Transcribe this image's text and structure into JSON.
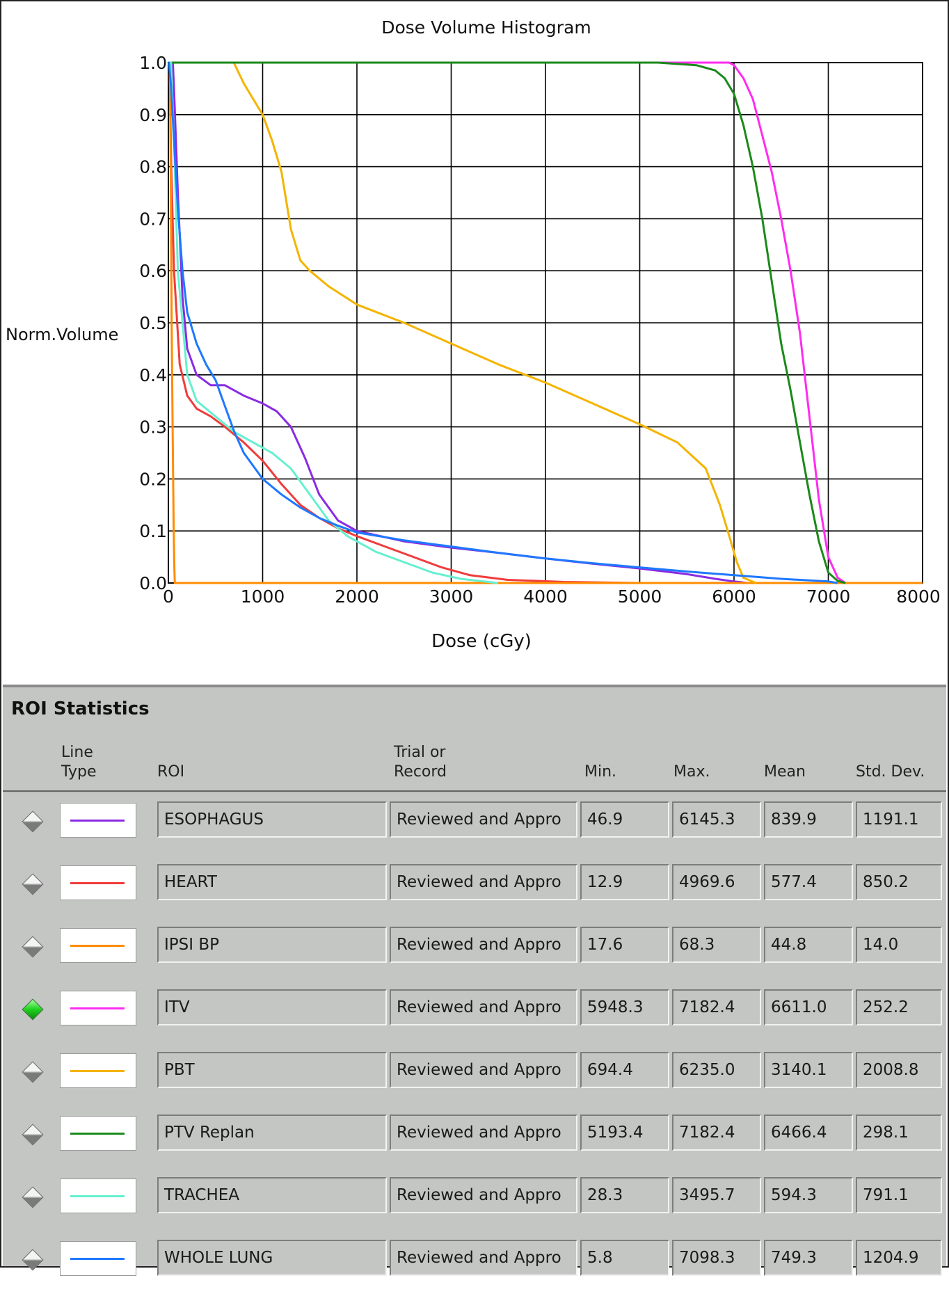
{
  "chart_data": {
    "type": "line",
    "title": "Dose Volume Histogram",
    "xlabel": "Dose (cGy)",
    "ylabel": "Norm.Volume",
    "xlim": [
      0,
      8000
    ],
    "ylim": [
      0,
      1.0
    ],
    "x_ticks": [
      "0",
      "1000",
      "2000",
      "3000",
      "4000",
      "5000",
      "6000",
      "7000",
      "8000"
    ],
    "y_ticks": [
      "0.0",
      "0.1",
      "0.2",
      "0.3",
      "0.4",
      "0.5",
      "0.6",
      "0.7",
      "0.8",
      "0.9",
      "1.0"
    ],
    "grid": true,
    "series": [
      {
        "name": "ESOPHAGUS",
        "color": "#8a2be2",
        "points": [
          [
            0,
            1.0
          ],
          [
            47,
            1.0
          ],
          [
            60,
            0.95
          ],
          [
            100,
            0.75
          ],
          [
            150,
            0.55
          ],
          [
            200,
            0.45
          ],
          [
            300,
            0.4
          ],
          [
            450,
            0.38
          ],
          [
            600,
            0.38
          ],
          [
            800,
            0.36
          ],
          [
            1000,
            0.345
          ],
          [
            1150,
            0.33
          ],
          [
            1300,
            0.3
          ],
          [
            1450,
            0.24
          ],
          [
            1600,
            0.17
          ],
          [
            1800,
            0.12
          ],
          [
            2000,
            0.1
          ],
          [
            2500,
            0.08
          ],
          [
            3000,
            0.068
          ],
          [
            3500,
            0.058
          ],
          [
            4000,
            0.047
          ],
          [
            4500,
            0.037
          ],
          [
            5000,
            0.028
          ],
          [
            5500,
            0.017
          ],
          [
            5800,
            0.008
          ],
          [
            6000,
            0.003
          ],
          [
            6145,
            0.0
          ]
        ]
      },
      {
        "name": "HEART",
        "color": "#f03c3c",
        "points": [
          [
            0,
            1.0
          ],
          [
            13,
            1.0
          ],
          [
            30,
            0.8
          ],
          [
            60,
            0.6
          ],
          [
            120,
            0.42
          ],
          [
            200,
            0.36
          ],
          [
            300,
            0.335
          ],
          [
            450,
            0.32
          ],
          [
            600,
            0.3
          ],
          [
            800,
            0.27
          ],
          [
            1000,
            0.235
          ],
          [
            1200,
            0.19
          ],
          [
            1400,
            0.15
          ],
          [
            1600,
            0.125
          ],
          [
            1800,
            0.105
          ],
          [
            2000,
            0.09
          ],
          [
            2300,
            0.07
          ],
          [
            2600,
            0.05
          ],
          [
            2900,
            0.03
          ],
          [
            3200,
            0.015
          ],
          [
            3600,
            0.006
          ],
          [
            4200,
            0.002
          ],
          [
            4970,
            0.0
          ]
        ]
      },
      {
        "name": "IPSI BP",
        "color": "#ff8c00",
        "points": [
          [
            0,
            1.0
          ],
          [
            15,
            1.0
          ],
          [
            18,
            0.95
          ],
          [
            25,
            0.8
          ],
          [
            35,
            0.5
          ],
          [
            45,
            0.3
          ],
          [
            55,
            0.12
          ],
          [
            62,
            0.04
          ],
          [
            68,
            0.0
          ],
          [
            8000,
            0.0
          ]
        ]
      },
      {
        "name": "ITV",
        "color": "#ff2cf0",
        "points": [
          [
            0,
            1.0
          ],
          [
            5948,
            1.0
          ],
          [
            6000,
            0.995
          ],
          [
            6100,
            0.97
          ],
          [
            6200,
            0.93
          ],
          [
            6300,
            0.86
          ],
          [
            6400,
            0.79
          ],
          [
            6500,
            0.7
          ],
          [
            6600,
            0.6
          ],
          [
            6700,
            0.48
          ],
          [
            6800,
            0.32
          ],
          [
            6900,
            0.16
          ],
          [
            7000,
            0.05
          ],
          [
            7100,
            0.01
          ],
          [
            7182,
            0.0
          ]
        ]
      },
      {
        "name": "PBT",
        "color": "#f4b400",
        "points": [
          [
            0,
            1.0
          ],
          [
            694,
            1.0
          ],
          [
            800,
            0.96
          ],
          [
            900,
            0.93
          ],
          [
            1000,
            0.9
          ],
          [
            1100,
            0.85
          ],
          [
            1200,
            0.79
          ],
          [
            1300,
            0.68
          ],
          [
            1400,
            0.62
          ],
          [
            1500,
            0.6
          ],
          [
            1700,
            0.57
          ],
          [
            2000,
            0.535
          ],
          [
            2500,
            0.5
          ],
          [
            3000,
            0.46
          ],
          [
            3500,
            0.42
          ],
          [
            4000,
            0.385
          ],
          [
            4500,
            0.345
          ],
          [
            5000,
            0.305
          ],
          [
            5400,
            0.27
          ],
          [
            5700,
            0.22
          ],
          [
            5850,
            0.15
          ],
          [
            5950,
            0.09
          ],
          [
            6030,
            0.04
          ],
          [
            6100,
            0.01
          ],
          [
            6235,
            0.0
          ]
        ]
      },
      {
        "name": "PTV Replan",
        "color": "#1a8a1a",
        "points": [
          [
            0,
            1.0
          ],
          [
            5193,
            1.0
          ],
          [
            5600,
            0.995
          ],
          [
            5800,
            0.985
          ],
          [
            5900,
            0.97
          ],
          [
            6000,
            0.94
          ],
          [
            6100,
            0.88
          ],
          [
            6200,
            0.8
          ],
          [
            6300,
            0.7
          ],
          [
            6400,
            0.58
          ],
          [
            6500,
            0.46
          ],
          [
            6600,
            0.37
          ],
          [
            6700,
            0.27
          ],
          [
            6800,
            0.17
          ],
          [
            6900,
            0.08
          ],
          [
            7000,
            0.02
          ],
          [
            7100,
            0.004
          ],
          [
            7182,
            0.0
          ]
        ]
      },
      {
        "name": "TRACHEA",
        "color": "#66f0d0",
        "points": [
          [
            0,
            1.0
          ],
          [
            28,
            1.0
          ],
          [
            60,
            0.85
          ],
          [
            100,
            0.6
          ],
          [
            200,
            0.4
          ],
          [
            300,
            0.35
          ],
          [
            500,
            0.32
          ],
          [
            700,
            0.29
          ],
          [
            900,
            0.27
          ],
          [
            1100,
            0.25
          ],
          [
            1300,
            0.22
          ],
          [
            1500,
            0.17
          ],
          [
            1700,
            0.12
          ],
          [
            1900,
            0.09
          ],
          [
            2200,
            0.06
          ],
          [
            2500,
            0.04
          ],
          [
            2800,
            0.02
          ],
          [
            3100,
            0.008
          ],
          [
            3495,
            0.0
          ]
        ]
      },
      {
        "name": "WHOLE LUNG",
        "color": "#1e78ff",
        "points": [
          [
            0,
            1.0
          ],
          [
            6,
            1.0
          ],
          [
            30,
            0.95
          ],
          [
            60,
            0.85
          ],
          [
            100,
            0.72
          ],
          [
            150,
            0.6
          ],
          [
            200,
            0.52
          ],
          [
            300,
            0.46
          ],
          [
            400,
            0.42
          ],
          [
            500,
            0.39
          ],
          [
            600,
            0.34
          ],
          [
            700,
            0.29
          ],
          [
            800,
            0.25
          ],
          [
            1000,
            0.2
          ],
          [
            1200,
            0.17
          ],
          [
            1400,
            0.145
          ],
          [
            1600,
            0.125
          ],
          [
            1800,
            0.11
          ],
          [
            2000,
            0.097
          ],
          [
            2500,
            0.082
          ],
          [
            3000,
            0.07
          ],
          [
            3500,
            0.058
          ],
          [
            4000,
            0.047
          ],
          [
            4500,
            0.038
          ],
          [
            5000,
            0.03
          ],
          [
            5500,
            0.022
          ],
          [
            6000,
            0.015
          ],
          [
            6500,
            0.008
          ],
          [
            7000,
            0.003
          ],
          [
            7098,
            0.0
          ]
        ]
      }
    ]
  },
  "stats": {
    "title": "ROI Statistics",
    "headers": {
      "line_type": "Line\nType",
      "roi": "ROI",
      "trial": "Trial or\nRecord",
      "min": "Min.",
      "max": "Max.",
      "mean": "Mean",
      "std": "Std. Dev."
    },
    "rows": [
      {
        "selected": false,
        "color": "#8a2be2",
        "roi": "ESOPHAGUS",
        "trial": "Reviewed and Appro",
        "min": "46.9",
        "max": "6145.3",
        "mean": "839.9",
        "std": "1191.1"
      },
      {
        "selected": false,
        "color": "#f03c3c",
        "roi": "HEART",
        "trial": "Reviewed and Appro",
        "min": "12.9",
        "max": "4969.6",
        "mean": "577.4",
        "std": "850.2"
      },
      {
        "selected": false,
        "color": "#ff8c00",
        "roi": "IPSI BP",
        "trial": "Reviewed and Appro",
        "min": "17.6",
        "max": "68.3",
        "mean": "44.8",
        "std": "14.0"
      },
      {
        "selected": true,
        "color": "#ff2cf0",
        "roi": "ITV",
        "trial": "Reviewed and Appro",
        "min": "5948.3",
        "max": "7182.4",
        "mean": "6611.0",
        "std": "252.2"
      },
      {
        "selected": false,
        "color": "#f4b400",
        "roi": "PBT",
        "trial": "Reviewed and Appro",
        "min": "694.4",
        "max": "6235.0",
        "mean": "3140.1",
        "std": "2008.8"
      },
      {
        "selected": false,
        "color": "#1a8a1a",
        "roi": "PTV Replan",
        "trial": "Reviewed and Appro",
        "min": "5193.4",
        "max": "7182.4",
        "mean": "6466.4",
        "std": "298.1"
      },
      {
        "selected": false,
        "color": "#66f0d0",
        "roi": "TRACHEA",
        "trial": "Reviewed and Appro",
        "min": "28.3",
        "max": "3495.7",
        "mean": "594.3",
        "std": "791.1"
      },
      {
        "selected": false,
        "color": "#1e78ff",
        "roi": "WHOLE LUNG",
        "trial": "Reviewed and Appro",
        "min": "5.8",
        "max": "7098.3",
        "mean": "749.3",
        "std": "1204.9"
      }
    ]
  }
}
